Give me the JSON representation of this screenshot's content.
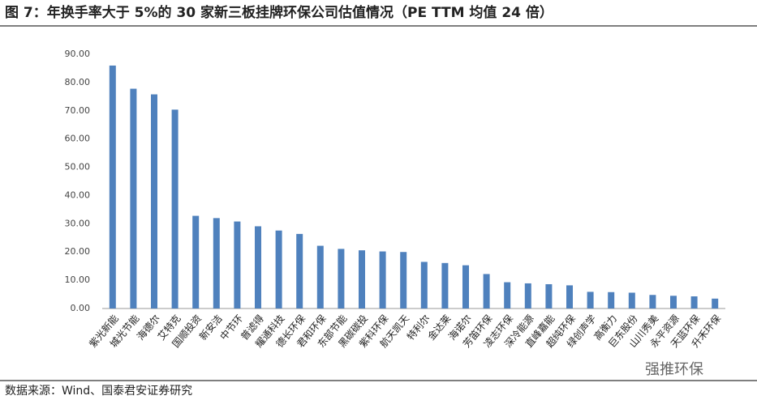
{
  "chart_data": {
    "type": "bar",
    "title": "图 7：年换手率大于 5%的 30 家新三板挂牌环保公司估值情况（PE TTM 均值 24 倍）",
    "source": "数据来源：Wind、国泰君安证券研究",
    "watermark": "强推环保",
    "categories": [
      "紫光新能",
      "城光节能",
      "海德尔",
      "艾特克",
      "国顺投资",
      "新安洁",
      "中节环",
      "普滤得",
      "耀通科技",
      "德长环保",
      "君和环保",
      "东部节能",
      "黑碳碳投",
      "紫科环保",
      "航天凯天",
      "特利尔",
      "金达莱",
      "海诺尔",
      "芳笛环保",
      "凌志环保",
      "深冷能源",
      "直峰嘉能",
      "超纯环保",
      "绿创声学",
      "高衡力",
      "巨东股份",
      "山川秀美",
      "永平资源",
      "天蓝环保",
      "升禾环保"
    ],
    "values": [
      86.0,
      77.8,
      75.8,
      70.4,
      32.8,
      32.0,
      30.8,
      29.1,
      27.6,
      26.4,
      22.2,
      21.1,
      20.6,
      20.2,
      20.0,
      16.5,
      16.1,
      15.3,
      12.2,
      9.3,
      8.9,
      8.6,
      8.2,
      5.9,
      5.8,
      5.6,
      4.8,
      4.5,
      4.3,
      3.5
    ],
    "color": "#4f81bd",
    "ylim": [
      0,
      90
    ],
    "yticks": [
      {
        "value": 0,
        "label": "0.00"
      },
      {
        "value": 10,
        "label": "10.00"
      },
      {
        "value": 20,
        "label": "20.00"
      },
      {
        "value": 30,
        "label": "30.00"
      },
      {
        "value": 40,
        "label": "40.00"
      },
      {
        "value": 50,
        "label": "50.00"
      },
      {
        "value": 60,
        "label": "60.00"
      },
      {
        "value": 70,
        "label": "70.00"
      },
      {
        "value": 80,
        "label": "80.00"
      },
      {
        "value": 90,
        "label": "90.00"
      }
    ],
    "grid": false
  }
}
